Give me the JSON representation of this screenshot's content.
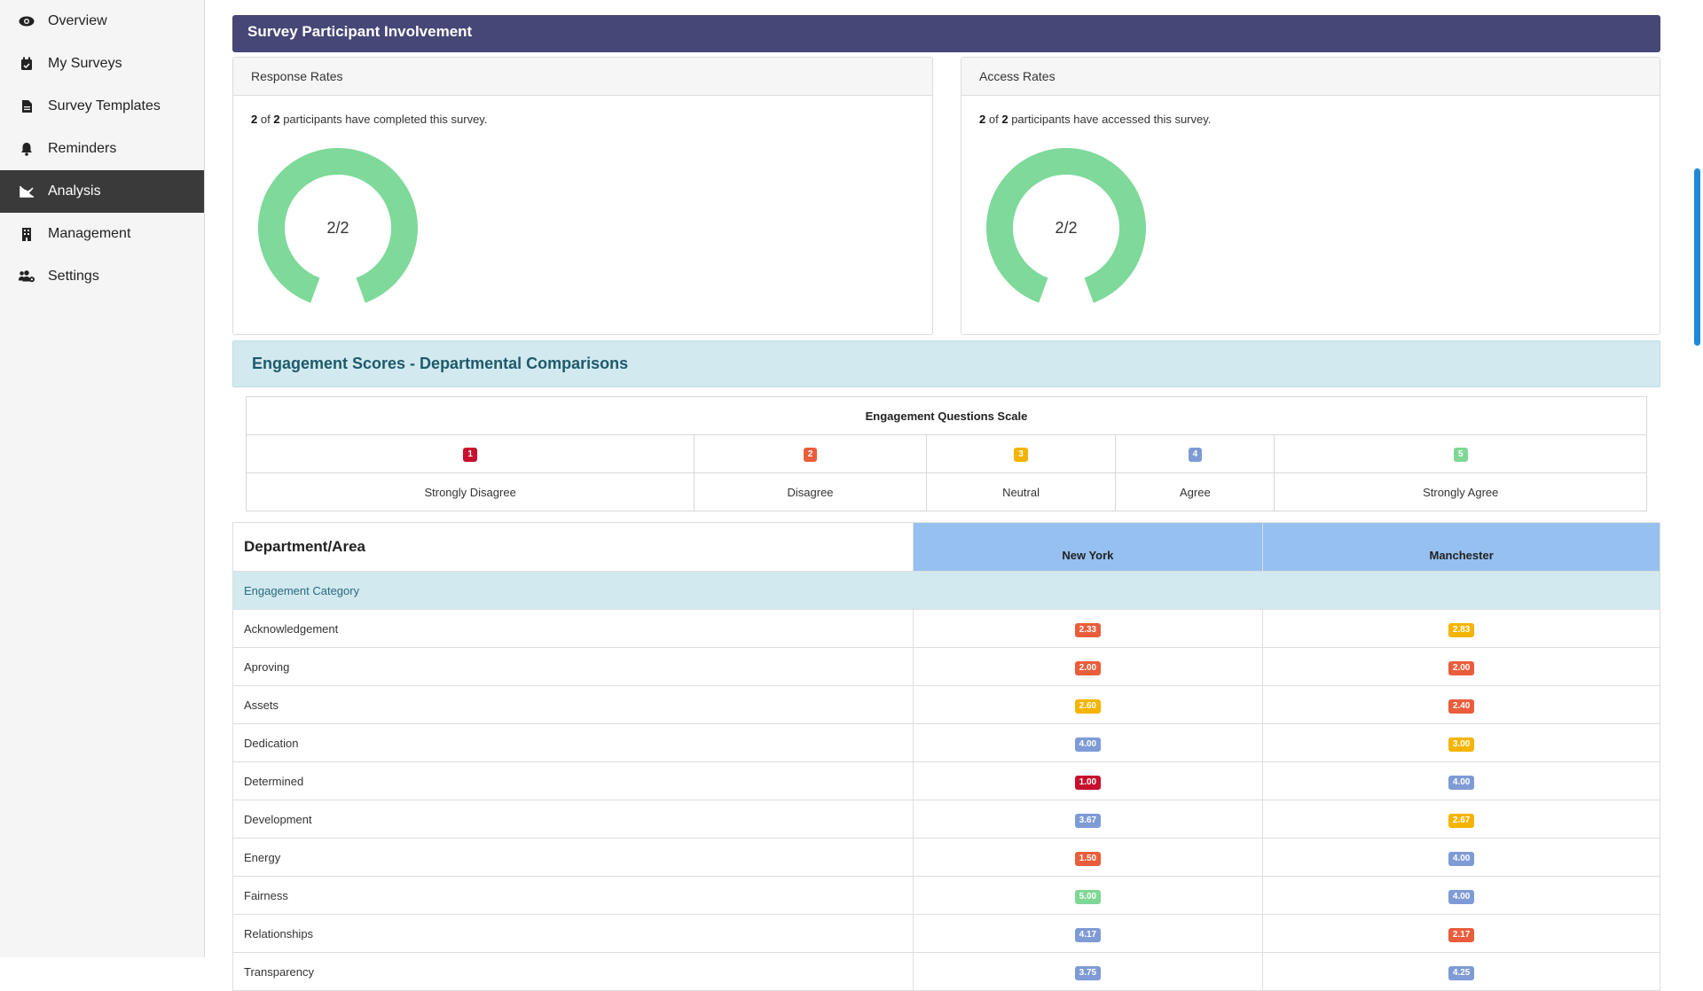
{
  "sidebar": {
    "items": [
      {
        "label": "Overview",
        "icon": "eye-icon",
        "active": false
      },
      {
        "label": "My Surveys",
        "icon": "calendar-check-icon",
        "active": false
      },
      {
        "label": "Survey Templates",
        "icon": "file-icon",
        "active": false
      },
      {
        "label": "Reminders",
        "icon": "bell-icon",
        "active": false
      },
      {
        "label": "Analysis",
        "icon": "chart-line-icon",
        "active": true
      },
      {
        "label": "Management",
        "icon": "building-icon",
        "active": false
      },
      {
        "label": "Settings",
        "icon": "users-cog-icon",
        "active": false
      }
    ]
  },
  "involvement": {
    "title": "Survey Participant Involvement",
    "response": {
      "header": "Response Rates",
      "completed": "2",
      "of_word": "of",
      "total": "2",
      "text": "participants have completed this survey.",
      "donut_label": "2/2",
      "fraction": 1.0
    },
    "access": {
      "header": "Access Rates",
      "completed": "2",
      "of_word": "of",
      "total": "2",
      "text": "participants have accessed this survey.",
      "donut_label": "2/2",
      "fraction": 1.0
    },
    "donut_color": "#7ed99a"
  },
  "engagement": {
    "title": "Engagement Scores - Departmental Comparisons",
    "scale": {
      "title": "Engagement Questions Scale",
      "levels": [
        {
          "num": "1",
          "label": "Strongly Disagree"
        },
        {
          "num": "2",
          "label": "Disagree"
        },
        {
          "num": "3",
          "label": "Neutral"
        },
        {
          "num": "4",
          "label": "Agree"
        },
        {
          "num": "5",
          "label": "Strongly Agree"
        }
      ]
    },
    "table": {
      "dept_header": "Department/Area",
      "locations": [
        "New York",
        "Manchester"
      ],
      "category_header": "Engagement Category",
      "rows": [
        {
          "label": "Acknowledgement",
          "values": [
            "2.33",
            "2.83"
          ]
        },
        {
          "label": "Aproving",
          "values": [
            "2.00",
            "2.00"
          ]
        },
        {
          "label": "Assets",
          "values": [
            "2.60",
            "2.40"
          ]
        },
        {
          "label": "Dedication",
          "values": [
            "4.00",
            "3.00"
          ]
        },
        {
          "label": "Determined",
          "values": [
            "1.00",
            "4.00"
          ]
        },
        {
          "label": "Development",
          "values": [
            "3.67",
            "2.67"
          ]
        },
        {
          "label": "Energy",
          "values": [
            "1.50",
            "4.00"
          ]
        },
        {
          "label": "Fairness",
          "values": [
            "5.00",
            "4.00"
          ]
        },
        {
          "label": "Relationships",
          "values": [
            "4.17",
            "2.17"
          ]
        },
        {
          "label": "Transparency",
          "values": [
            "3.75",
            "4.25"
          ]
        }
      ]
    }
  },
  "colors": {
    "header_bg": "#464677",
    "level1": "#c8102e",
    "level2": "#ea5d3b",
    "level3": "#f4b400",
    "level4": "#7e9bd6",
    "level5": "#7ed794"
  }
}
